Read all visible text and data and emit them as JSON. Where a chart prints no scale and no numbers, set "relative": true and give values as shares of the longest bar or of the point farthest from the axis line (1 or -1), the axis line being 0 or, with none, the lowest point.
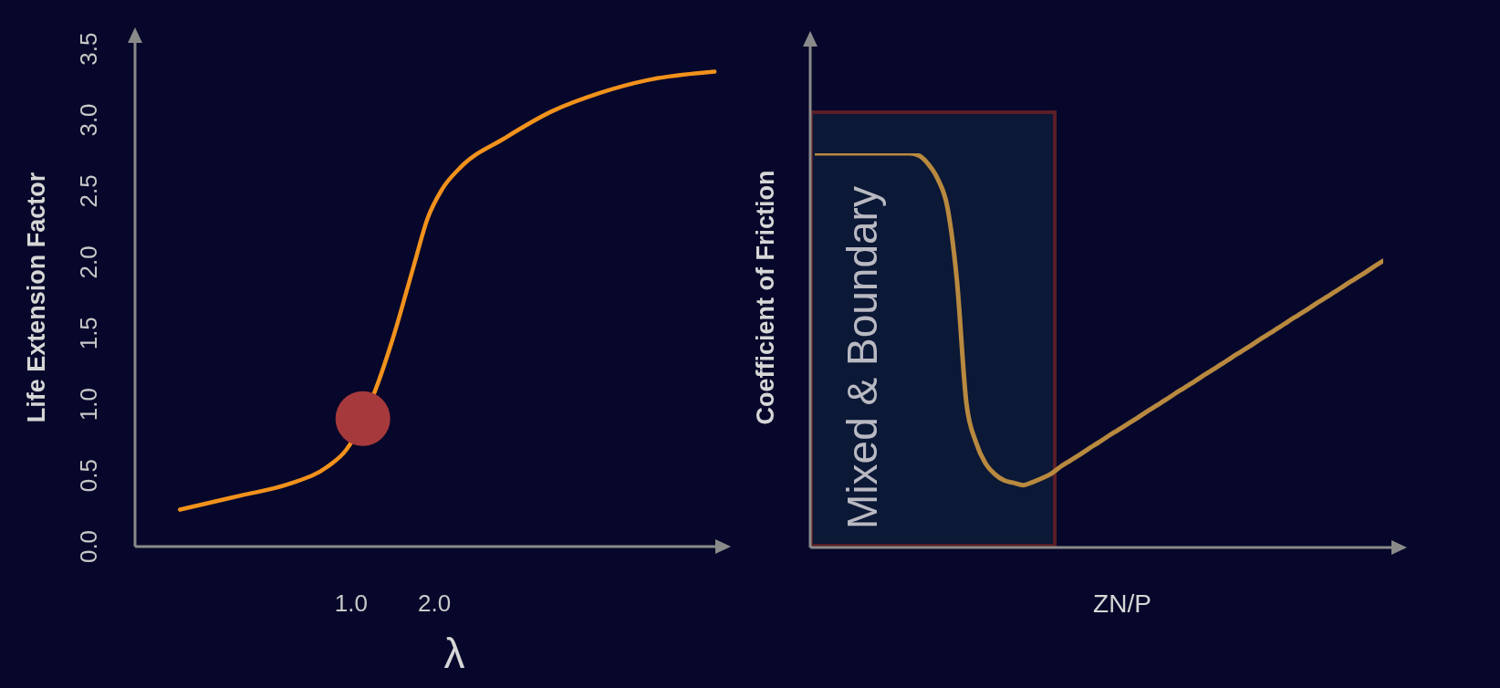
{
  "chart_data": [
    {
      "type": "line",
      "xlabel": "λ",
      "ylabel": "Life Extension Factor",
      "xlim": [
        -1.6,
        5.5
      ],
      "xticks": [
        {
          "value": 1,
          "label": "1.0"
        },
        {
          "value": 2,
          "label": "2.0"
        }
      ],
      "ylim": [
        0,
        3.6
      ],
      "yticks": [
        {
          "value": 0,
          "label": "0.0"
        },
        0.5,
        {
          "value": 1,
          "label": "1.0"
        },
        1.5,
        {
          "value": 2,
          "label": "2.0"
        },
        2.5,
        {
          "value": 3,
          "label": "3.0"
        },
        3.5
      ],
      "series": [
        {
          "color": "#f2921c",
          "x": [
            -1.06,
            -0.32,
            0.25,
            0.71,
            0.94,
            1.29,
            1.52,
            1.75,
            1.92,
            2.09,
            2.32,
            2.84,
            3.41,
            3.99,
            4.56,
            5.37
          ],
          "values": [
            0.26,
            0.36,
            0.44,
            0.56,
            0.68,
            1.1,
            1.5,
            1.97,
            2.31,
            2.51,
            2.67,
            2.87,
            3.06,
            3.19,
            3.28,
            3.34
          ]
        },
        {
          "type": "scatter",
          "color": "#a6393b",
          "marker": "circle",
          "x": [
            1.14
          ],
          "values": [
            0.9
          ]
        }
      ]
    },
    {
      "type": "line",
      "xlabel": "ZN/P",
      "ylabel": "Coefficient of Friction",
      "relative": true,
      "categories": [
        null,
        null,
        null,
        null,
        null,
        null,
        null,
        null,
        null,
        null,
        null,
        null,
        null,
        null,
        null,
        null,
        null,
        null,
        null,
        null,
        null,
        null,
        null,
        null,
        null,
        null,
        null,
        null,
        null,
        null,
        null,
        null,
        null,
        null,
        null,
        null,
        null,
        null,
        null,
        null,
        null,
        null,
        null,
        null,
        null,
        null,
        null,
        null,
        null,
        null,
        null,
        null,
        null,
        null,
        null,
        null,
        null,
        null,
        null,
        null,
        null
      ],
      "series": [
        {
          "color": "#b8893f",
          "values": [
            1,
            1,
            1,
            1,
            1,
            1,
            1,
            1,
            1,
            1,
            1,
            0.994,
            0.972,
            0.934,
            0.863,
            0.678,
            0.367,
            0.268,
            0.214,
            0.186,
            0.17,
            0.164,
            0.158,
            0.166,
            0.176,
            0.188,
            0.206,
            0.221,
            0.236,
            0.252,
            0.267,
            0.283,
            0.298,
            0.313,
            0.328,
            0.344,
            0.359,
            0.374,
            0.39,
            0.405,
            0.42,
            0.436,
            0.451,
            0.466,
            0.482,
            0.497,
            0.512,
            0.528,
            0.543,
            0.558,
            0.574,
            0.589,
            0.604,
            0.62,
            0.635,
            0.65,
            0.666,
            0.681,
            0.696,
            0.712,
            0.727
          ]
        }
      ],
      "annotations": [
        "Mixed & Boundary"
      ]
    }
  ]
}
